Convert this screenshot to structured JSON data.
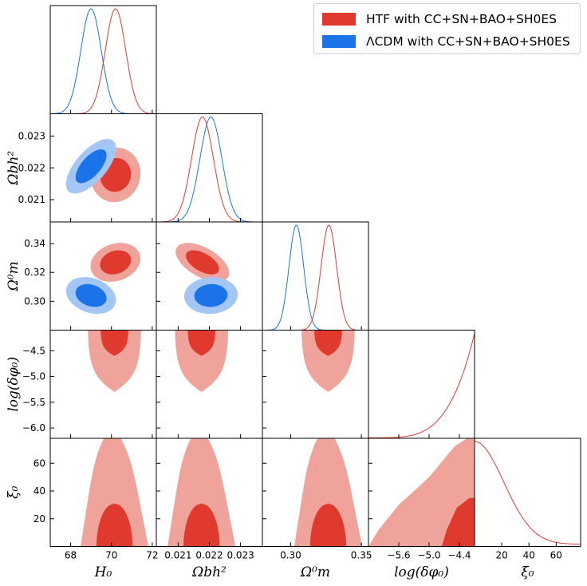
{
  "chart_data": {
    "type": "corner",
    "parameters": [
      {
        "key": "H0",
        "label": "H₀",
        "range": [
          67,
          72.2
        ],
        "ticks": [
          68,
          70,
          72
        ]
      },
      {
        "key": "Obh2",
        "label": "Ωbh²",
        "range": [
          0.0203,
          0.0237
        ],
        "ticks": [
          0.021,
          0.022,
          0.023
        ],
        "tick_labels": [
          "0.021",
          "0.022",
          "0.023"
        ]
      },
      {
        "key": "Om0",
        "label": "Ω⁰m",
        "range": [
          0.28,
          0.355
        ],
        "ticks": [
          0.3,
          0.32,
          0.34
        ],
        "tick_labels": [
          "0.30",
          "0.32",
          "0.34"
        ],
        "bottom_ticks": [
          0.3,
          0.35
        ],
        "bottom_tick_labels": [
          "0.30",
          "0.35"
        ]
      },
      {
        "key": "logdphi0",
        "label": "log(δφ₀)",
        "range": [
          -6.2,
          -4.1
        ],
        "ticks": [
          -6.0,
          -5.5,
          -5.0,
          -4.5
        ],
        "tick_labels": [
          "−6.0",
          "−5.5",
          "−5.0",
          "−4.5"
        ],
        "bottom_ticks": [
          -5.6,
          -5.0,
          -4.4
        ],
        "bottom_tick_labels": [
          "−5.6",
          "−5.0",
          "−4.4"
        ]
      },
      {
        "key": "xi0",
        "label": "ξ₀",
        "range": [
          0,
          78
        ],
        "ticks": [
          20,
          40,
          60
        ],
        "tick_labels": [
          "20",
          "40",
          "60"
        ]
      }
    ],
    "series": [
      {
        "name": "HTF with CC+SN+BAO+SH0ES",
        "color": "#e03a2e",
        "light_color": "#f0a39a",
        "means": {
          "H0": 70.2,
          "Obh2": 0.02178,
          "Om0": 0.327
        },
        "sigmas": {
          "H0": 0.5,
          "Obh2": 0.00035,
          "Om0": 0.0055
        },
        "correlations": {
          "H0|Obh2": 0.05,
          "H0|Om0": 0.2,
          "Obh2|Om0": -0.55
        }
      },
      {
        "name": "ΛCDM with CC+SN+BAO+SH0ES",
        "color": "#1a73e8",
        "light_color": "#a4c6f4",
        "means": {
          "H0": 69.0,
          "Obh2": 0.02205,
          "Om0": 0.304
        },
        "sigmas": {
          "H0": 0.5,
          "Obh2": 0.00035,
          "Om0": 0.0052
        },
        "correlations": {
          "H0|Obh2": 0.65,
          "H0|Om0": -0.25,
          "Obh2|Om0": 0.05
        }
      }
    ],
    "legend": {
      "position": "top-right"
    }
  }
}
